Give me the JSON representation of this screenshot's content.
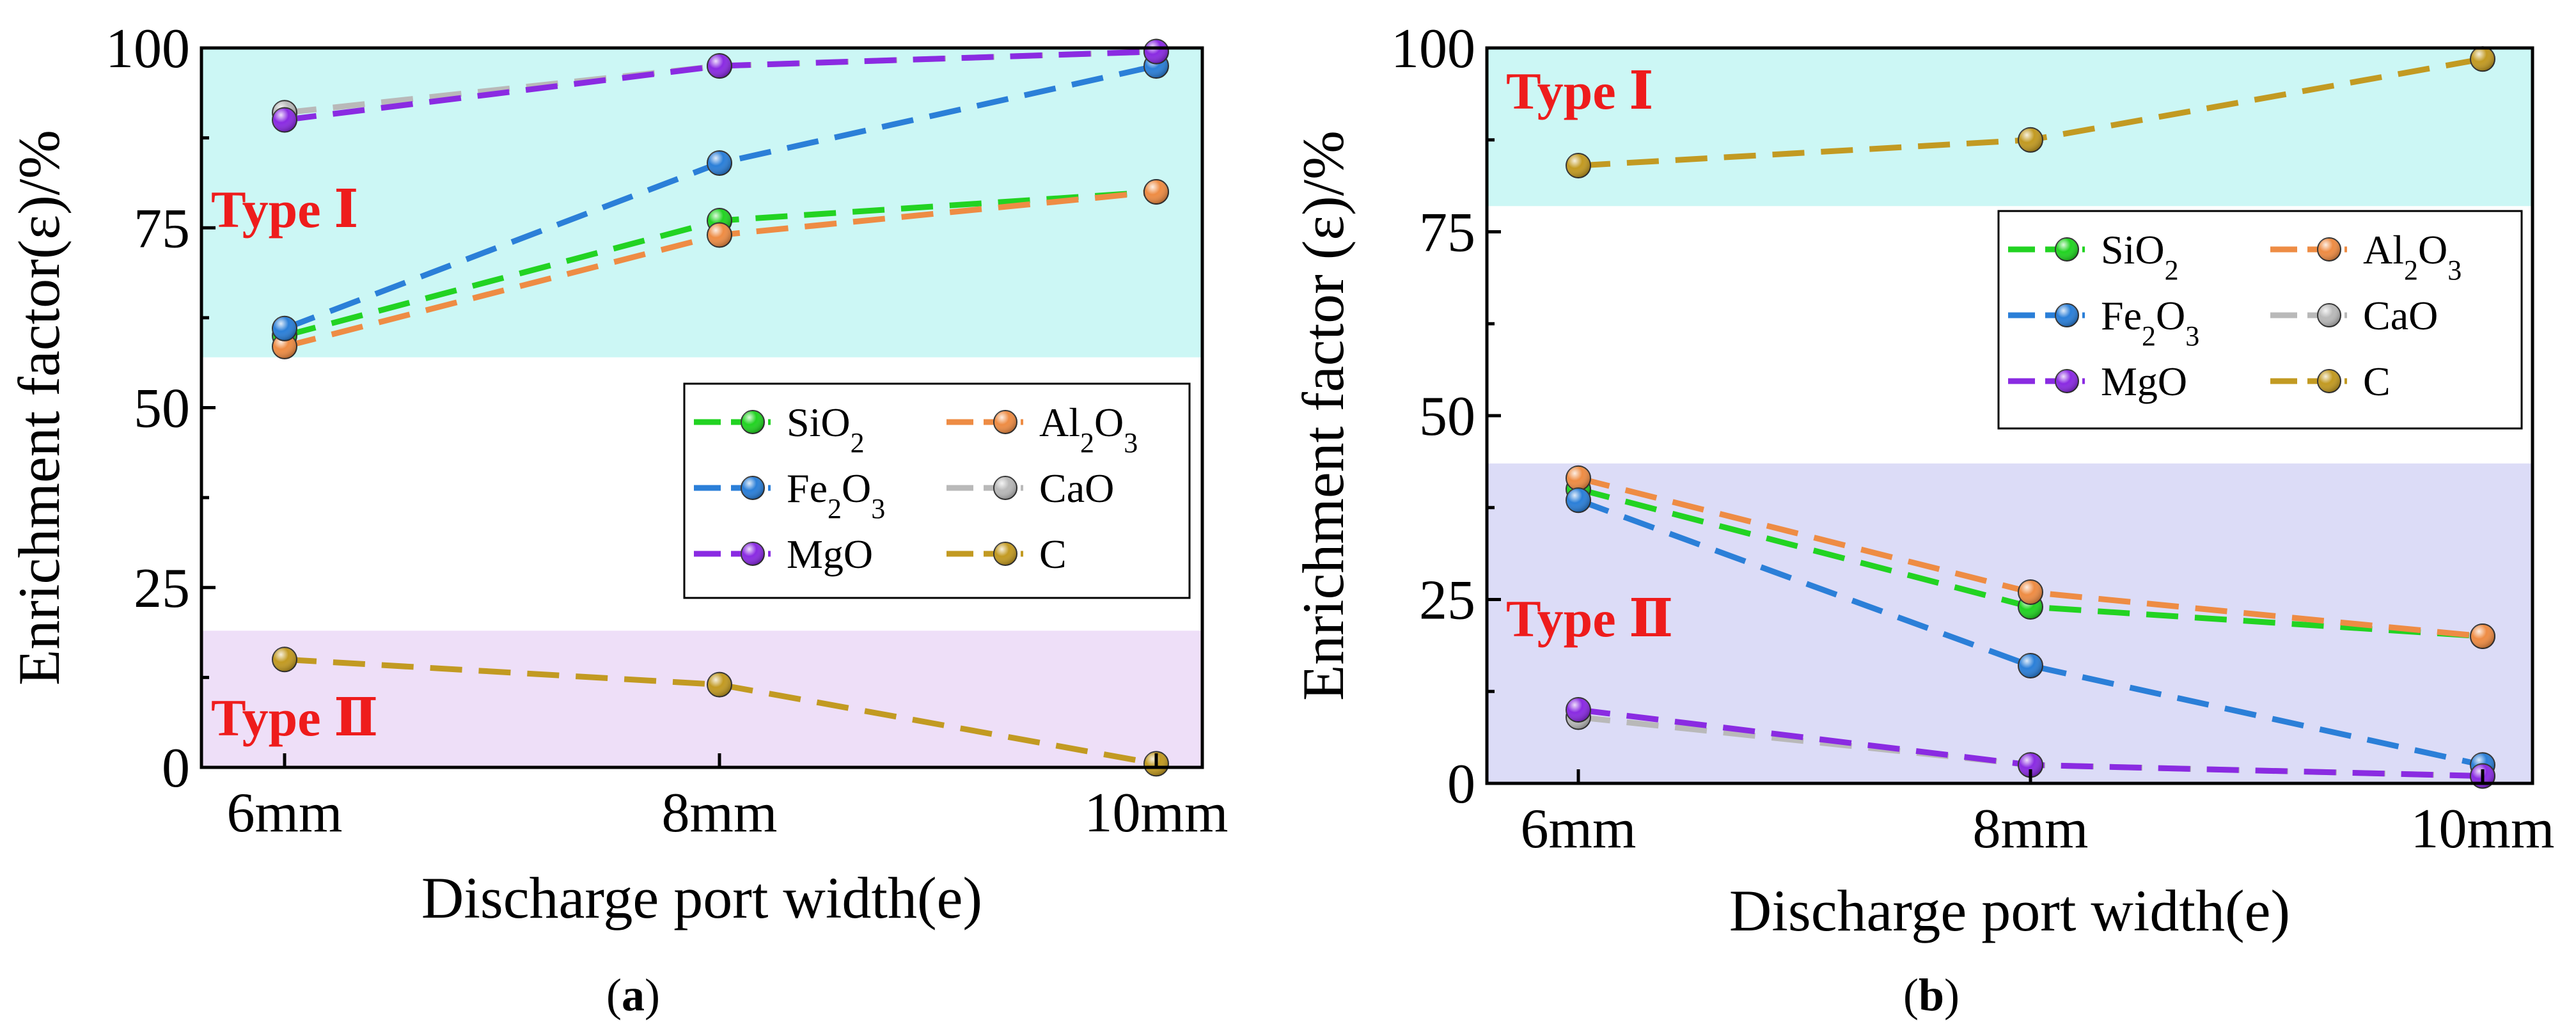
{
  "chart_data": [
    {
      "type": "line",
      "panel_label": "(a)",
      "xlabel": "Discharge port width(e)",
      "ylabel": "Enrichment factor(ε)/%",
      "categories": [
        "6mm",
        "8mm",
        "10mm"
      ],
      "ylim": [
        0,
        100
      ],
      "yticks": [
        0,
        25,
        50,
        75,
        100
      ],
      "regions": [
        {
          "label": "Type Ⅰ",
          "range": [
            57,
            100
          ],
          "color": "#ccf7f5"
        },
        {
          "label": "Type Ⅱ",
          "range": [
            0,
            19
          ],
          "color": "#eedff8"
        }
      ],
      "legend_position": "center-right",
      "series": [
        {
          "name": "SiO2",
          "color": "#22d322",
          "values": [
            60,
            76,
            80
          ]
        },
        {
          "name": "Al2O3",
          "color": "#ee8c44",
          "values": [
            58.5,
            74,
            80
          ]
        },
        {
          "name": "Fe2O3",
          "color": "#2b7fd8",
          "values": [
            61,
            84,
            97.5
          ]
        },
        {
          "name": "CaO",
          "color": "#b9b9b9",
          "values": [
            91,
            97.5,
            99.5
          ]
        },
        {
          "name": "MgO",
          "color": "#8a2be2",
          "values": [
            90,
            97.5,
            99.5
          ]
        },
        {
          "name": "C",
          "color": "#c29a22",
          "values": [
            15,
            11.5,
            0.5
          ]
        }
      ]
    },
    {
      "type": "line",
      "panel_label": "(b)",
      "xlabel": "Discharge port width(e)",
      "ylabel": "Enrichment factor (ε)/%",
      "categories": [
        "6mm",
        "8mm",
        "10mm"
      ],
      "ylim": [
        0,
        100
      ],
      "yticks": [
        0,
        25,
        50,
        75,
        100
      ],
      "regions": [
        {
          "label": "Type Ⅰ",
          "range": [
            78.5,
            100
          ],
          "color": "#ccf7f5"
        },
        {
          "label": "Type Ⅱ",
          "range": [
            0,
            43.5
          ],
          "color": "#dcdcf7"
        }
      ],
      "legend_position": "upper-right",
      "series": [
        {
          "name": "SiO2",
          "color": "#22d322",
          "values": [
            40,
            24,
            20
          ]
        },
        {
          "name": "Al2O3",
          "color": "#ee8c44",
          "values": [
            41.5,
            26,
            20
          ]
        },
        {
          "name": "Fe2O3",
          "color": "#2b7fd8",
          "values": [
            38.5,
            16,
            2.5
          ]
        },
        {
          "name": "CaO",
          "color": "#b9b9b9",
          "values": [
            9,
            2.5,
            1
          ]
        },
        {
          "name": "MgO",
          "color": "#8a2be2",
          "values": [
            10,
            2.5,
            1
          ]
        },
        {
          "name": "C",
          "color": "#c29a22",
          "values": [
            84,
            87.5,
            98.5
          ]
        }
      ]
    }
  ]
}
